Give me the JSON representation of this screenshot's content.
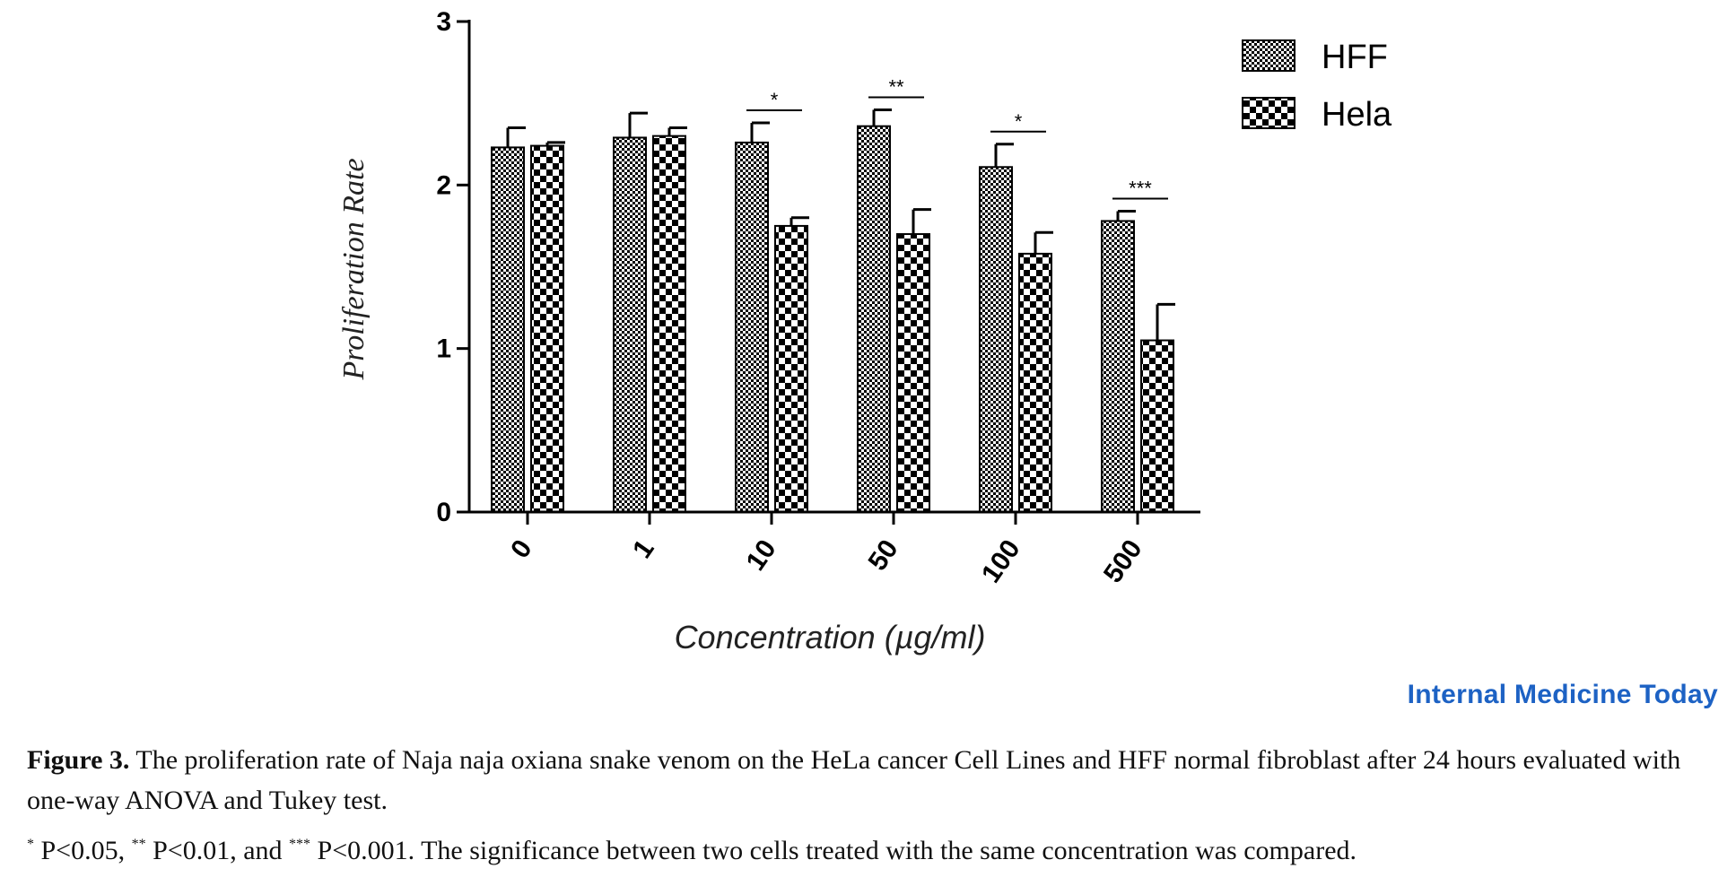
{
  "chart_data": {
    "type": "bar",
    "categories": [
      "0",
      "1",
      "10",
      "50",
      "100",
      "500"
    ],
    "series": [
      {
        "name": "HFF",
        "values": [
          2.23,
          2.29,
          2.26,
          2.36,
          2.11,
          1.78
        ],
        "errors": [
          0.12,
          0.15,
          0.12,
          0.1,
          0.14,
          0.06
        ],
        "pattern": "fine-checker"
      },
      {
        "name": "Hela",
        "values": [
          2.24,
          2.3,
          1.75,
          1.7,
          1.58,
          1.05
        ],
        "errors": [
          0.02,
          0.05,
          0.05,
          0.15,
          0.13,
          0.22
        ],
        "pattern": "coarse-checker"
      }
    ],
    "significance": [
      "",
      "",
      "*",
      "**",
      "*",
      "***"
    ],
    "xlabel": "Concentration (µg/ml)",
    "ylabel": "Proliferation Rate",
    "ylim": [
      0,
      3
    ],
    "yticks": [
      "0",
      "1",
      "2",
      "3"
    ],
    "grid": false,
    "legend_position": "top-right"
  },
  "brand": "Internal Medicine Today",
  "caption": {
    "label": "Figure 3.",
    "text": " The proliferation rate of Naja naja oxiana snake venom on the HeLa cancer Cell Lines and HFF normal fibroblast after 24 hours evaluated with one-way ANOVA and Tukey test."
  },
  "footnote": {
    "s1": "*",
    "t1": " P<0.05, ",
    "s2": "**",
    "t2": " P<0.01, and ",
    "s3": "***",
    "t3": " P<0.001. The significance between two cells treated with the same concentration was compared."
  }
}
